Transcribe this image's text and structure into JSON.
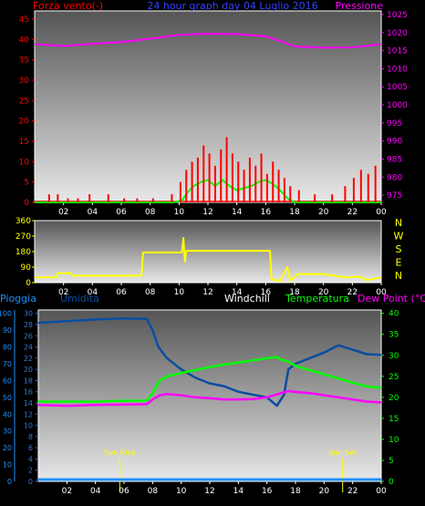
{
  "title": "24 hour graph day  04 Luglio 2016",
  "colors": {
    "wind": "#ff0000",
    "gust": "#ff0000",
    "avg_wind": "#00ff00",
    "pressure": "#ff00ff",
    "direction": "#ffff00",
    "rain": "#1e90ff",
    "humidity": "#0a4da0",
    "windchill": "#ffffff",
    "temperature": "#00ff00",
    "dewpoint": "#ff00ff",
    "sun": "#ffff00",
    "axis": "#ffffff",
    "plot_top": "#555555",
    "plot_bottom": "#e8e8e8"
  },
  "x_ticks": [
    "02",
    "04",
    "06",
    "08",
    "10",
    "12",
    "14",
    "16",
    "18",
    "20",
    "22",
    "00"
  ],
  "chart_data": [
    {
      "type": "line",
      "left_label": "Forza vento(-)",
      "right_label": "Pressione",
      "y_left_ticks": [
        0,
        5,
        10,
        15,
        20,
        25,
        30,
        35,
        40,
        45
      ],
      "ylim_left": [
        0,
        47
      ],
      "y_right_ticks": [
        975,
        980,
        985,
        990,
        995,
        1000,
        1005,
        1010,
        1015,
        1020,
        1025
      ],
      "ylim_right": [
        973,
        1026
      ],
      "xlim": [
        0,
        24
      ],
      "series": [
        {
          "key": "pressure",
          "axis": "right",
          "x": [
            0,
            2,
            4,
            6,
            8,
            10,
            12,
            14,
            16,
            17,
            18,
            20,
            22,
            24
          ],
          "values": [
            1016.8,
            1016.3,
            1016.9,
            1017.4,
            1018.3,
            1019.4,
            1019.7,
            1019.6,
            1019.0,
            1017.7,
            1016.2,
            1015.8,
            1015.9,
            1016.8
          ]
        },
        {
          "key": "avg_wind",
          "axis": "left",
          "x": [
            0,
            9.6,
            10.2,
            10.6,
            11,
            11.5,
            12,
            12.5,
            13,
            13.5,
            14,
            14.5,
            15,
            15.5,
            16,
            16.5,
            17,
            17.5,
            18,
            24
          ],
          "values": [
            0,
            0,
            0.5,
            2.5,
            4,
            5,
            5.5,
            4,
            5.5,
            4,
            3,
            3.5,
            4,
            5,
            5.5,
            4.5,
            3,
            1,
            0,
            0
          ]
        },
        {
          "key": "gust",
          "axis": "left",
          "type": "bar",
          "x": [
            1,
            1.6,
            2.3,
            3,
            3.8,
            5.1,
            6.2,
            7.1,
            8.2,
            9.5,
            10.1,
            10.5,
            10.9,
            11.3,
            11.7,
            12.1,
            12.5,
            12.9,
            13.3,
            13.7,
            14.1,
            14.5,
            14.9,
            15.3,
            15.7,
            16.1,
            16.5,
            16.9,
            17.3,
            17.7,
            18.3,
            19.4,
            20.6,
            21.5,
            22.1,
            22.6,
            23.1,
            23.6
          ],
          "values": [
            2,
            2,
            1,
            1,
            2,
            2,
            1,
            1,
            1,
            2,
            5,
            8,
            10,
            11,
            14,
            12,
            9,
            13,
            16,
            12,
            10,
            8,
            11,
            9,
            12,
            7,
            10,
            8,
            6,
            4,
            3,
            2,
            2,
            4,
            6,
            8,
            7,
            9
          ]
        }
      ]
    },
    {
      "type": "line",
      "y_left_ticks": [
        0,
        90,
        180,
        270,
        360
      ],
      "ylim_left": [
        0,
        360
      ],
      "y_right_ticks": [
        "N",
        "W",
        "S",
        "E",
        "N"
      ],
      "xlim": [
        0,
        24
      ],
      "series": [
        {
          "key": "direction",
          "x": [
            0,
            1.5,
            1.6,
            2.5,
            2.6,
            7.4,
            7.5,
            10.2,
            10.3,
            10.4,
            10.5,
            16.3,
            16.4,
            17,
            17.5,
            17.7,
            18.1,
            18.2,
            20,
            21.5,
            22.5,
            23,
            24
          ],
          "values": [
            30,
            30,
            55,
            55,
            40,
            40,
            175,
            175,
            260,
            120,
            185,
            185,
            20,
            10,
            90,
            10,
            40,
            50,
            50,
            30,
            35,
            15,
            30
          ]
        }
      ]
    },
    {
      "type": "line",
      "labels": [
        "Pioggia",
        "Umidità",
        "Windchill",
        "Temperatura",
        "Dew Point (°C)"
      ],
      "y_rain_ticks": [
        0,
        10,
        20,
        30,
        40,
        50,
        60,
        70,
        80,
        90,
        100
      ],
      "ylim_rain": [
        0,
        102
      ],
      "y_hum_ticks": [
        0,
        2,
        4,
        6,
        8,
        10,
        12,
        14,
        16,
        18,
        20,
        22,
        24,
        26,
        28,
        30
      ],
      "ylim_hum": [
        0,
        30.6
      ],
      "y_temp_ticks": [
        0,
        5,
        10,
        15,
        20,
        25,
        30,
        35,
        40
      ],
      "ylim_temp": [
        0,
        40.8
      ],
      "xlim": [
        0,
        24
      ],
      "sun_rise": 5.7,
      "sun_set": 21.3,
      "sun_rise_label": "Sun Rise",
      "sun_set_label": "Sun Set",
      "series": [
        {
          "key": "humidity",
          "axis": "hum",
          "x": [
            0,
            2,
            4,
            6,
            7.6,
            8,
            8.4,
            9,
            10,
            11,
            12,
            13,
            14,
            15,
            16,
            16.7,
            17.2,
            17.5,
            18,
            19,
            20,
            21,
            22,
            23,
            24
          ],
          "values": [
            28.3,
            28.6,
            28.9,
            29.1,
            29.0,
            27,
            24,
            22,
            20,
            18.5,
            17.5,
            17,
            16,
            15.5,
            15,
            13.5,
            15.5,
            20,
            21,
            22,
            23,
            24.3,
            23.5,
            22.7,
            22.6
          ]
        },
        {
          "key": "temperature",
          "axis": "temp",
          "x": [
            0,
            2,
            4,
            6,
            7.6,
            8,
            8.5,
            9,
            10,
            11,
            12,
            13,
            14,
            15,
            16,
            16.7,
            17,
            17.5,
            18,
            19,
            20,
            21,
            22,
            23,
            24
          ],
          "values": [
            19.0,
            19.0,
            19.0,
            19.2,
            19.2,
            21,
            24,
            25,
            25.8,
            26.5,
            27.2,
            27.8,
            28.3,
            28.8,
            29.3,
            29.6,
            29.0,
            28.5,
            27.5,
            26.5,
            25.5,
            24.5,
            23.5,
            22.6,
            22.3
          ]
        },
        {
          "key": "dewpoint",
          "axis": "temp",
          "x": [
            0,
            2,
            4,
            6,
            7.6,
            8,
            8.5,
            9,
            10,
            11,
            12,
            13,
            14,
            15,
            16,
            17,
            17.5,
            18,
            19,
            20,
            21,
            22,
            23,
            24
          ],
          "values": [
            18.2,
            18.0,
            18.2,
            18.3,
            18.4,
            19.5,
            20.5,
            20.8,
            20.5,
            20.0,
            19.8,
            19.5,
            19.5,
            19.6,
            20.0,
            21.0,
            21.5,
            21.3,
            21.0,
            20.5,
            20.0,
            19.5,
            19.0,
            18.8
          ]
        },
        {
          "key": "rain",
          "axis": "rain",
          "x": [
            0,
            24
          ],
          "values": [
            0,
            0
          ]
        }
      ]
    }
  ]
}
